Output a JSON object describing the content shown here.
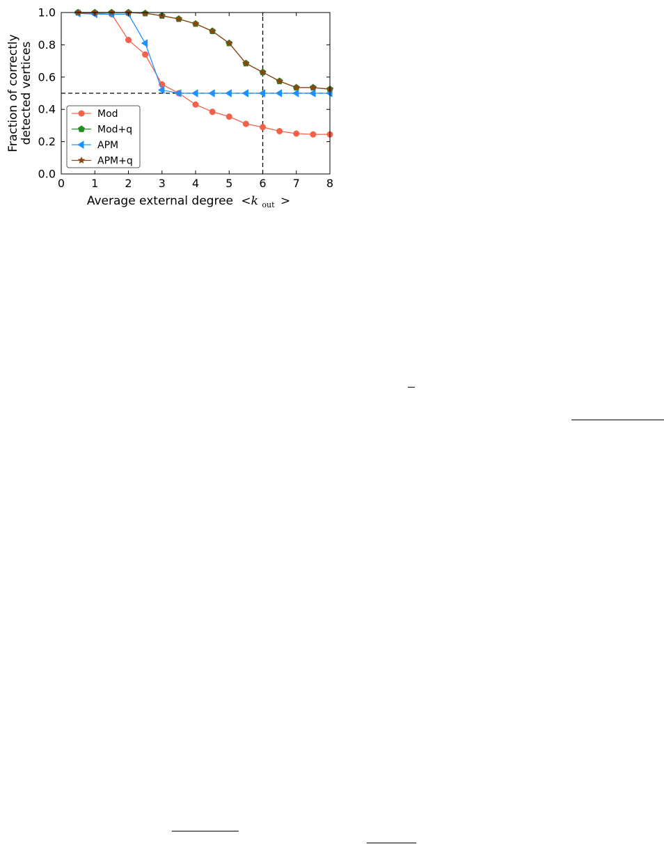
{
  "chart_data": {
    "type": "line",
    "xlabel": "Average external degree",
    "xlabel_math": "<k",
    "xlabel_sub": "out",
    "xlabel_end": ">",
    "ylabel_line1": "Fraction of correctly",
    "ylabel_line2": "detected vertices",
    "xlim": [
      0,
      8
    ],
    "ylim": [
      0.0,
      1.0
    ],
    "xticks": [
      0,
      1,
      2,
      3,
      4,
      5,
      6,
      7,
      8
    ],
    "xtick_labels": [
      "0",
      "1",
      "2",
      "3",
      "4",
      "5",
      "6",
      "7",
      "8"
    ],
    "yticks": [
      0.0,
      0.2,
      0.4,
      0.6,
      0.8,
      1.0
    ],
    "ytick_labels": [
      "0.0",
      "0.2",
      "0.4",
      "0.6",
      "0.8",
      "1.0"
    ],
    "grid": false,
    "legend_position": "bottom-left",
    "reference_lines": [
      {
        "orientation": "horizontal",
        "y": 0.5,
        "x_range": [
          0,
          8
        ],
        "style": "dashed"
      },
      {
        "orientation": "vertical",
        "x": 6,
        "y_range": [
          0,
          1
        ],
        "style": "dashed"
      }
    ],
    "x": [
      0.5,
      1.0,
      1.5,
      2.0,
      2.5,
      3.0,
      3.5,
      4.0,
      4.5,
      5.0,
      5.5,
      6.0,
      6.5,
      7.0,
      7.5,
      8.0
    ],
    "series": [
      {
        "name": "Mod",
        "color": "#f4614a",
        "marker": "circle",
        "values": [
          1.0,
          0.995,
          0.99,
          0.83,
          0.74,
          0.555,
          0.5,
          0.43,
          0.385,
          0.355,
          0.31,
          0.29,
          0.265,
          0.25,
          0.245,
          0.245
        ]
      },
      {
        "name": "Mod+q",
        "color": "#228b22",
        "marker": "pentagon",
        "values": [
          1.0,
          1.0,
          1.0,
          1.0,
          0.995,
          0.98,
          0.96,
          0.93,
          0.885,
          0.81,
          0.685,
          0.63,
          0.575,
          0.535,
          0.535,
          0.525
        ]
      },
      {
        "name": "APM",
        "color": "#1e90ff",
        "marker": "triangle-left",
        "values": [
          0.995,
          0.99,
          0.99,
          0.99,
          0.81,
          0.52,
          0.5,
          0.5,
          0.5,
          0.5,
          0.5,
          0.5,
          0.5,
          0.5,
          0.5,
          0.5
        ]
      },
      {
        "name": "APM+q",
        "color": "#8b4513",
        "marker": "star",
        "values": [
          1.0,
          1.0,
          1.0,
          1.0,
          0.995,
          0.98,
          0.96,
          0.93,
          0.885,
          0.81,
          0.685,
          0.63,
          0.575,
          0.535,
          0.535,
          0.525
        ]
      }
    ]
  }
}
